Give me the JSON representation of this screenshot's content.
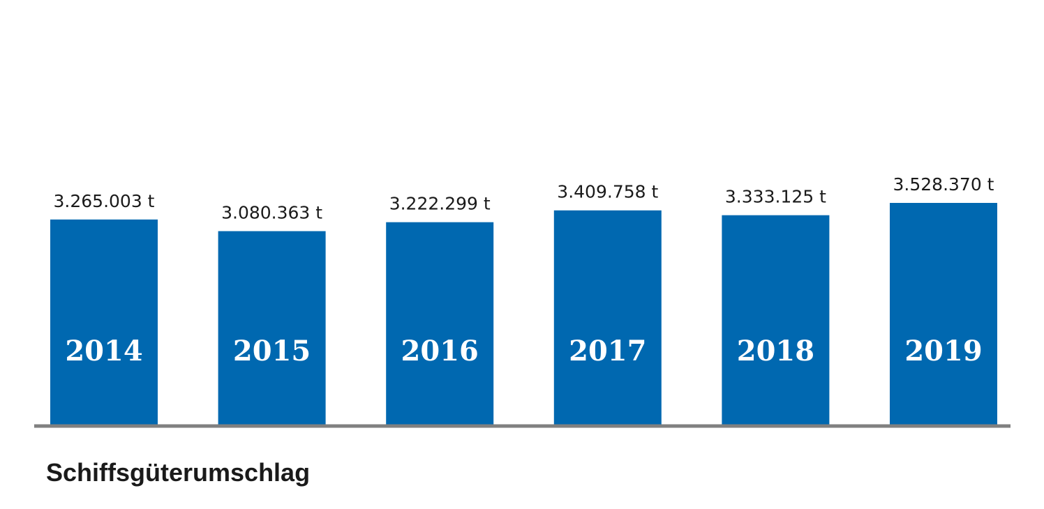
{
  "chart_data": {
    "type": "bar",
    "title": "Schiffsgüterumschlag",
    "categories": [
      "2014",
      "2015",
      "2016",
      "2017",
      "2018",
      "2019"
    ],
    "values": [
      3265003,
      3080363,
      3222299,
      3409758,
      3333125,
      3528370
    ],
    "value_labels": [
      "3.265.003 t",
      "3.080.363 t",
      "3.222.299 t",
      "3.409.758 t",
      "3.333.125 t",
      "3.528.370 t"
    ],
    "color": "#0068b0",
    "axis_color": "#808080"
  }
}
